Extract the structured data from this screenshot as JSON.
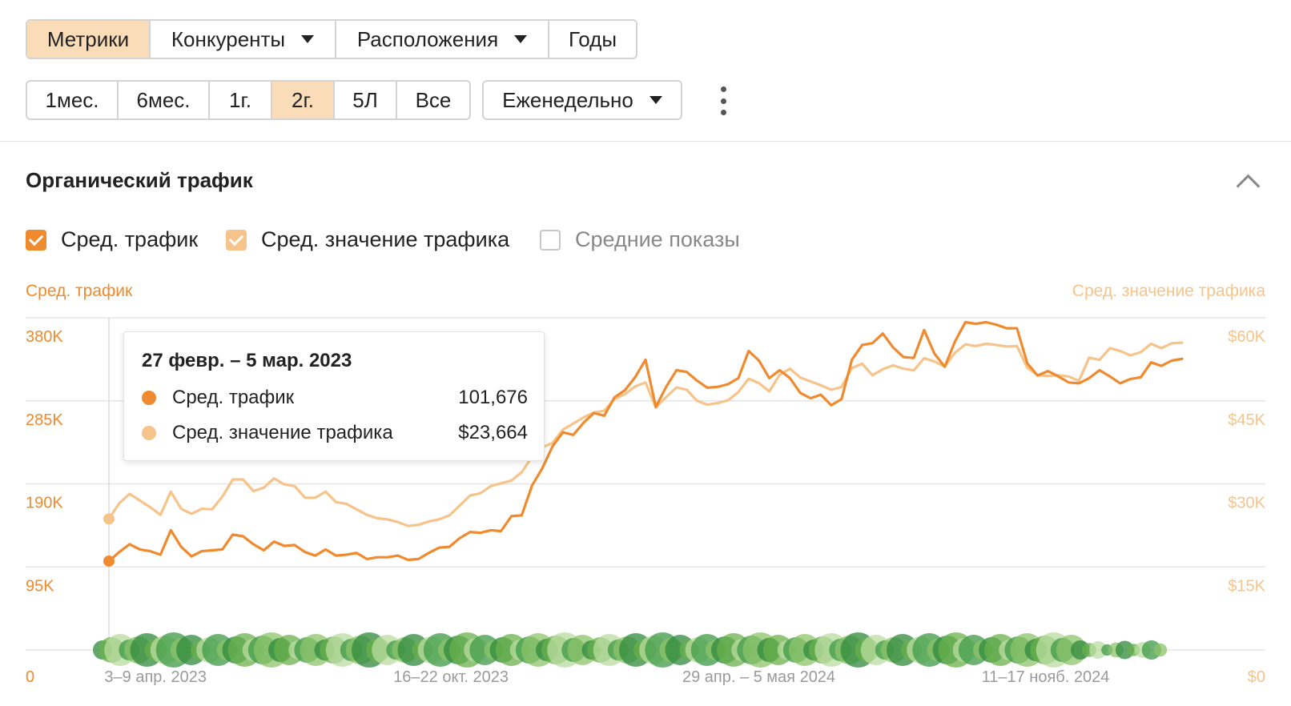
{
  "filters": {
    "view_tabs": [
      {
        "label": "Метрики",
        "active": true,
        "dropdown": false
      },
      {
        "label": "Конкуренты",
        "active": false,
        "dropdown": true
      },
      {
        "label": "Расположения",
        "active": false,
        "dropdown": true
      },
      {
        "label": "Годы",
        "active": false,
        "dropdown": false
      }
    ],
    "ranges": [
      {
        "label": "1мес.",
        "active": false
      },
      {
        "label": "6мес.",
        "active": false
      },
      {
        "label": "1г.",
        "active": false
      },
      {
        "label": "2г.",
        "active": true
      },
      {
        "label": "5Л",
        "active": false
      },
      {
        "label": "Все",
        "active": false
      }
    ],
    "interval": "Еженедельно"
  },
  "section": {
    "title": "Органический трафик"
  },
  "legend": [
    {
      "label": "Сред. трафик",
      "checked": true
    },
    {
      "label": "Сред. значение трафика",
      "checked": true
    },
    {
      "label": "Средние показы",
      "checked": false
    }
  ],
  "colors": {
    "traffic": "#ef8a2e",
    "value": "#f6c48a",
    "accent_bg": "#fbdcb9"
  },
  "tooltip": {
    "title": "27 февр. – 5 мар. 2023",
    "rows": [
      {
        "name": "Сред. трафик",
        "value": "101,676"
      },
      {
        "name": "Сред. значение трафика",
        "value": "$23,664"
      }
    ]
  },
  "chart_data": {
    "type": "line",
    "left_axis_title": "Сред. трафик",
    "right_axis_title": "Сред. значение трафика",
    "left_ticks": [
      "0",
      "95K",
      "190K",
      "285K",
      "380K"
    ],
    "right_ticks": [
      "$0",
      "$15K",
      "$30K",
      "$45K",
      "$60K"
    ],
    "ylim_left": [
      0,
      380000
    ],
    "ylim_right": [
      0,
      60000
    ],
    "x_labels": [
      "3–9 апр. 2023",
      "16–22 окт. 2023",
      "29 апр. – 5 мая 2024",
      "11–17 нояб. 2024"
    ],
    "x_label_week_index": [
      5,
      33,
      61,
      90
    ],
    "grid": true,
    "series": [
      {
        "name": "Сред. трафик",
        "color": "#ef8a2e",
        "values": [
          101676,
          112000,
          121000,
          115000,
          113000,
          109000,
          137000,
          118000,
          107000,
          113000,
          114000,
          115000,
          132000,
          130000,
          121000,
          114000,
          124000,
          119000,
          120000,
          112000,
          108000,
          115000,
          108000,
          109000,
          111000,
          104000,
          106000,
          106000,
          108000,
          103000,
          104000,
          111000,
          117000,
          118000,
          128000,
          135000,
          134000,
          137000,
          136000,
          153000,
          154000,
          188000,
          208000,
          233000,
          249000,
          246000,
          260000,
          271000,
          268000,
          289000,
          297000,
          312000,
          332000,
          278000,
          301000,
          320000,
          318000,
          308000,
          300000,
          301000,
          304000,
          311000,
          342000,
          331000,
          311000,
          320000,
          311000,
          294000,
          288000,
          292000,
          280000,
          287000,
          332000,
          349000,
          351000,
          362000,
          346000,
          335000,
          334000,
          366000,
          339000,
          324000,
          353000,
          375000,
          373000,
          375000,
          372000,
          368000,
          368000,
          328000,
          314000,
          319000,
          313000,
          306000,
          305000,
          311000,
          320000,
          313000,
          305000,
          310000,
          312000,
          329000,
          325000,
          331000,
          333000
        ]
      },
      {
        "name": "Сред. значение трафика",
        "color": "#f6c48a",
        "values": [
          23664,
          26500,
          28200,
          27000,
          25800,
          24400,
          28600,
          25500,
          24600,
          25500,
          25400,
          27700,
          30800,
          30800,
          28700,
          29300,
          31000,
          29900,
          29600,
          27500,
          27500,
          28600,
          26700,
          26400,
          25400,
          24400,
          23800,
          23600,
          23100,
          22400,
          22600,
          23200,
          23600,
          24300,
          26100,
          27900,
          28300,
          29600,
          30100,
          30600,
          32100,
          34900,
          36600,
          37400,
          39800,
          40900,
          42000,
          42900,
          43200,
          45300,
          46200,
          47600,
          48300,
          43800,
          45700,
          47400,
          47000,
          45000,
          44300,
          44600,
          45100,
          46600,
          49000,
          48200,
          46700,
          49700,
          50800,
          49200,
          48500,
          47800,
          47000,
          47500,
          50900,
          51700,
          49600,
          50700,
          51400,
          50800,
          50500,
          52700,
          52100,
          51200,
          53700,
          55200,
          54900,
          55300,
          55100,
          54800,
          54900,
          51000,
          49600,
          49500,
          49600,
          49400,
          48600,
          52800,
          52400,
          54500,
          54000,
          53200,
          53800,
          55300,
          54500,
          55400,
          55500
        ]
      }
    ],
    "marker_index": 0
  }
}
